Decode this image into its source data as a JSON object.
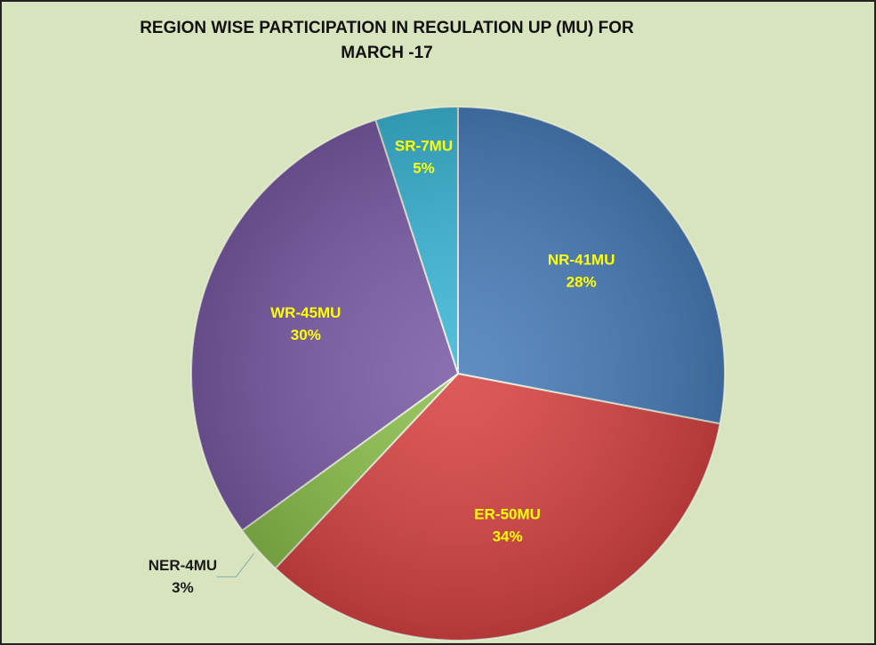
{
  "chart_data": {
    "type": "pie",
    "title": [
      "REGION WISE PARTICIPATION IN REGULATION UP (MU) FOR",
      "MARCH -17"
    ],
    "categories": [
      "NR-41MU",
      "ER-50MU",
      "NER-4MU",
      "WR-45MU",
      "SR-7MU"
    ],
    "values": [
      28,
      34,
      3,
      30,
      5
    ],
    "value_labels": [
      "28%",
      "34%",
      "3%",
      "30%",
      "5%"
    ],
    "colors": [
      "#4a7ebb",
      "#d94444",
      "#8cc04c",
      "#7b5ca6",
      "#3db8d8"
    ]
  }
}
